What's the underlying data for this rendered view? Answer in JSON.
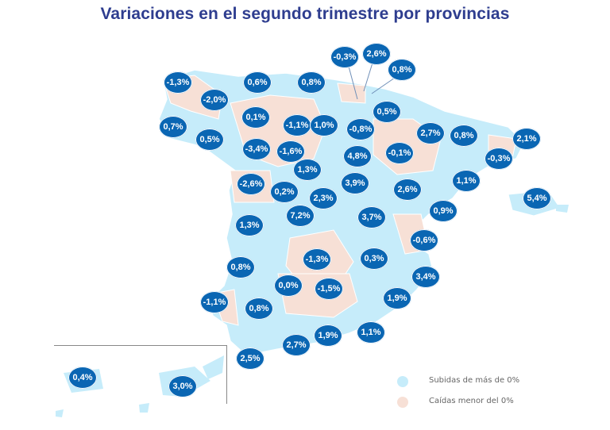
{
  "title": "Variaciones en el segundo trimestre por provincias",
  "colors": {
    "rise": "#c6ecfa",
    "fall": "#f7e0d6",
    "badge": "#0a66b3",
    "title": "#2e3d8f"
  },
  "legend": [
    {
      "label": "Subidas de más de 0%",
      "color": "#c6ecfa"
    },
    {
      "label": "Caídas menor del 0%",
      "color": "#f7e0d6"
    }
  ],
  "badges": [
    "-1,3%",
    "0,6%",
    "0,8%",
    "-0,3%",
    "2,6%",
    "0,8%",
    "-2,0%",
    "0,1%",
    "0,7%",
    "0,5%",
    "-1,1%",
    "1,0%",
    "-0,8%",
    "0,5%",
    "2,7%",
    "0,8%",
    "2,1%",
    "-3,4%",
    "-1,6%",
    "4,8%",
    "-0,1%",
    "-0,3%",
    "1,3%",
    "-2,6%",
    "0,2%",
    "2,3%",
    "3,9%",
    "2,6%",
    "1,1%",
    "5,4%",
    "7,2%",
    "3,7%",
    "0,9%",
    "1,3%",
    "-0,6%",
    "-1,3%",
    "0,3%",
    "0,8%",
    "0,0%",
    "-1,5%",
    "3,4%",
    "-1,1%",
    "0,8%",
    "1,9%",
    "2,7%",
    "1,9%",
    "1,1%",
    "2,5%",
    "0,4%",
    "3,0%"
  ]
}
